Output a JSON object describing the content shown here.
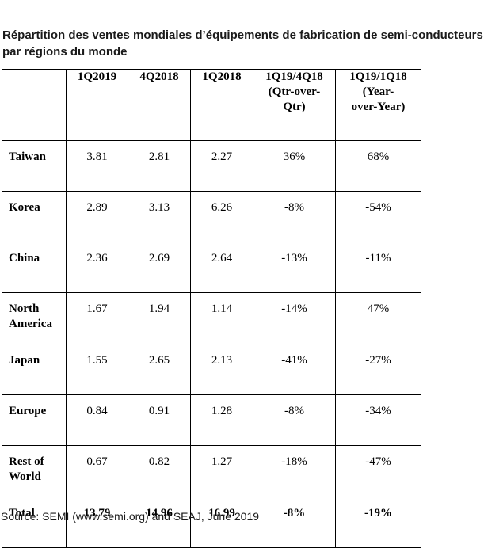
{
  "title": "Répartition des ventes mondiales d’équipements de fabrication de semi-conducteurs par régions du monde",
  "source": "Source: SEMI (www.semi.org) and SEAJ, June 2019",
  "chart_data": {
    "type": "table",
    "columns": [
      "",
      "1Q2019",
      "4Q2018",
      "1Q2018",
      "1Q19/4Q18 (Qtr-over-Qtr)",
      "1Q19/1Q18 (Year-over-Year)"
    ],
    "header_lines": [
      [
        ""
      ],
      [
        "1Q2019"
      ],
      [
        "4Q2018"
      ],
      [
        "1Q2018"
      ],
      [
        "1Q19/4Q18",
        "(Qtr-over-",
        "Qtr)"
      ],
      [
        "1Q19/1Q18",
        "(Year-",
        "over-Year)"
      ]
    ],
    "rows": [
      {
        "region": [
          "Taiwan"
        ],
        "values": [
          "3.81",
          "2.81",
          "2.27",
          "36%",
          "68%"
        ]
      },
      {
        "region": [
          "Korea"
        ],
        "values": [
          "2.89",
          "3.13",
          "6.26",
          "-8%",
          "-54%"
        ]
      },
      {
        "region": [
          "China"
        ],
        "values": [
          "2.36",
          "2.69",
          "2.64",
          "-13%",
          "-11%"
        ]
      },
      {
        "region": [
          "North",
          "America"
        ],
        "values": [
          "1.67",
          "1.94",
          "1.14",
          "-14%",
          "47%"
        ]
      },
      {
        "region": [
          "Japan"
        ],
        "values": [
          "1.55",
          "2.65",
          "2.13",
          "-41%",
          "-27%"
        ]
      },
      {
        "region": [
          "Europe"
        ],
        "values": [
          "0.84",
          "0.91",
          "1.28",
          "-8%",
          "-34%"
        ]
      },
      {
        "region": [
          "Rest of",
          "World"
        ],
        "values": [
          "0.67",
          "0.82",
          "1.27",
          "-18%",
          "-47%"
        ]
      },
      {
        "region": [
          "Total"
        ],
        "values": [
          "13.79",
          "14.96",
          "16.99",
          "-8%",
          "-19%"
        ],
        "bold": true
      }
    ]
  }
}
